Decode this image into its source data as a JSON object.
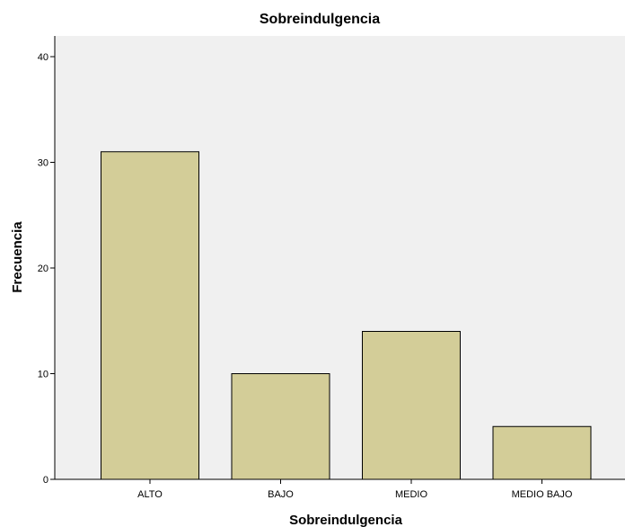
{
  "chart_data": {
    "type": "bar",
    "title": "Sobreindulgencia",
    "xlabel": "Sobreindulgencia",
    "ylabel": "Frecuencia",
    "categories": [
      "ALTO",
      "BAJO",
      "MEDIO",
      "MEDIO BAJO"
    ],
    "values": [
      31,
      10,
      14,
      5
    ],
    "ylim": [
      0,
      42
    ],
    "yticks": [
      "0",
      "10",
      "20",
      "30",
      "40"
    ],
    "grid": false,
    "legend": "none",
    "colors": {
      "bar_fill": "#d3cd98",
      "bar_stroke": "#000000",
      "plot_background": "#f0f0f0"
    }
  }
}
